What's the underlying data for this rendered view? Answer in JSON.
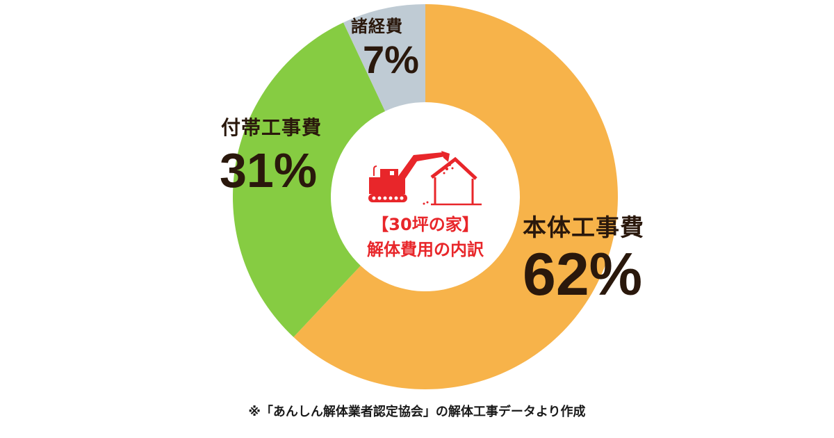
{
  "chart_data": {
    "type": "pie",
    "variant": "donut",
    "title": "【30坪の家】解体費用の内訳",
    "categories": [
      "本体工事費",
      "付帯工事費",
      "諸経費"
    ],
    "values": [
      62,
      31,
      7
    ],
    "unit": "%",
    "colors": [
      "#F7B34A",
      "#86CC42",
      "#BFCBD4"
    ],
    "start_angle": "12 o'clock, clockwise",
    "legend": "none (direct labels)"
  },
  "labels": {
    "main": {
      "name": "本体工事費",
      "pct": "62%"
    },
    "ancillary": {
      "name": "付帯工事費",
      "pct": "31%"
    },
    "misc": {
      "name": "諸経費",
      "pct": "7%"
    }
  },
  "center": {
    "line1": "【30坪の家】",
    "line2": "解体費用の内訳",
    "icon": "excavator-demolishing-house-icon",
    "color": "#E8262A"
  },
  "footnote": "※「あんしん解体業者認定協会」の解体工事データより作成"
}
